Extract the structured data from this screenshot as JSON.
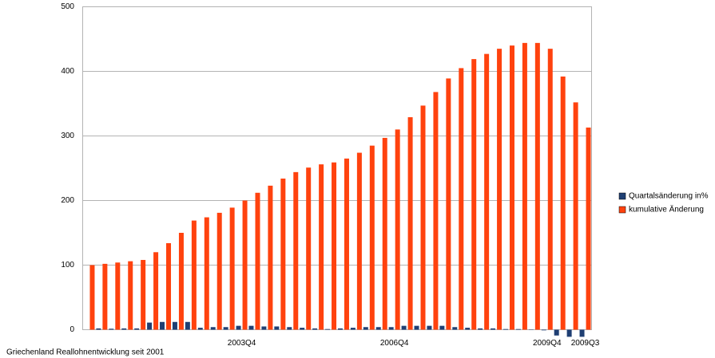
{
  "chart_data": {
    "type": "bar",
    "annotation": "Griechenland Reallohnentwicklung seit 2001",
    "categories": [
      null,
      null,
      null,
      null,
      null,
      null,
      null,
      null,
      null,
      null,
      null,
      null,
      "2003Q4",
      null,
      null,
      null,
      null,
      null,
      null,
      null,
      null,
      null,
      null,
      null,
      "2006Q4",
      null,
      null,
      null,
      null,
      null,
      null,
      null,
      null,
      null,
      null,
      null,
      "2009Q4",
      null,
      null,
      "2009Q3"
    ],
    "series": [
      {
        "name": "Quartalsänderung in%",
        "color": "#1f3f73",
        "values": [
          0,
          2,
          1.5,
          2,
          2,
          11,
          12,
          12,
          12,
          3,
          4,
          4,
          6,
          6,
          5,
          5,
          4,
          3,
          2,
          1,
          2,
          3,
          4,
          4,
          4,
          6,
          6,
          6,
          6,
          4,
          3,
          2,
          2,
          1,
          1,
          0.5,
          -1,
          -9,
          -11,
          -11
        ]
      },
      {
        "name": "kumulative Änderung",
        "color": "#ff420e",
        "values": [
          100,
          102,
          104,
          106,
          108,
          120,
          134,
          150,
          169,
          174,
          181,
          189,
          200,
          212,
          223,
          234,
          244,
          251,
          256,
          259,
          265,
          274,
          285,
          297,
          310,
          329,
          347,
          368,
          389,
          405,
          419,
          427,
          435,
          440,
          444,
          444,
          435,
          392,
          352,
          313
        ]
      }
    ],
    "ylim": [
      0,
      500
    ],
    "yticks": [
      0,
      100,
      200,
      300,
      400,
      500
    ],
    "grid": true,
    "legend": "right"
  }
}
